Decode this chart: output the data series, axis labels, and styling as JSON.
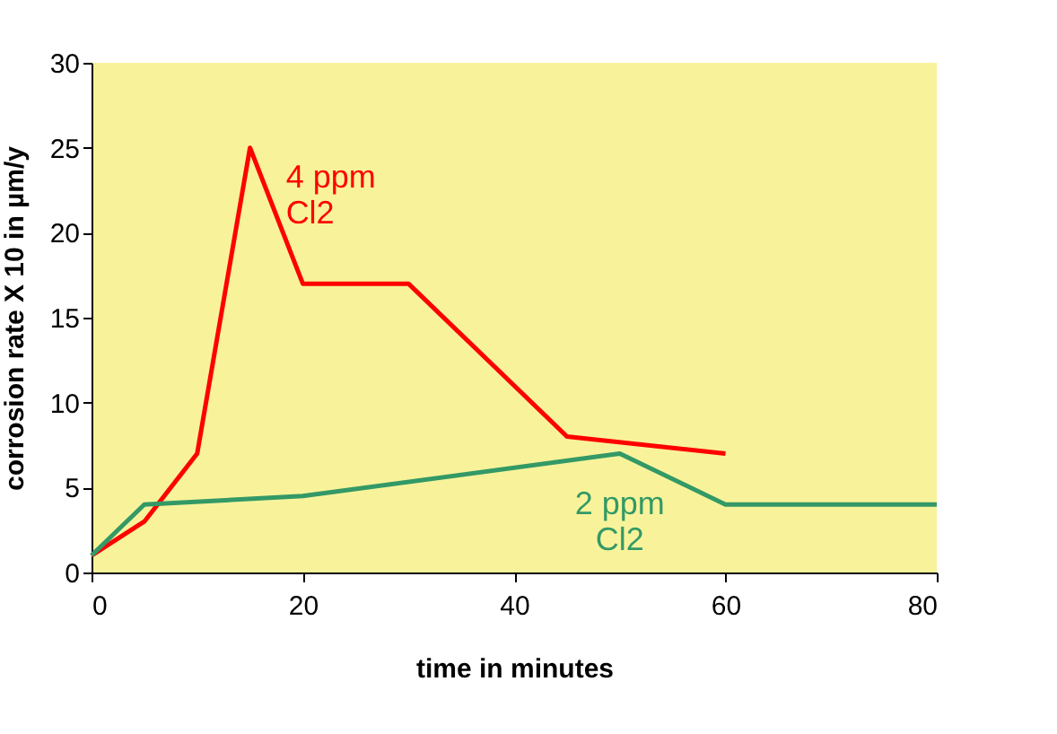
{
  "chart_data": {
    "type": "line",
    "xlabel": "time in minutes",
    "ylabel": "corrosion rate X 10 in µm/y",
    "xlim": [
      0,
      80
    ],
    "xticks": [
      0,
      20,
      40,
      60,
      80
    ],
    "ylim": [
      0,
      30
    ],
    "yticks": [
      0,
      5,
      10,
      15,
      20,
      25,
      30
    ],
    "grid": false,
    "legend": false,
    "marker": "none",
    "series": [
      {
        "name": "4 ppm Cl2",
        "color": "#ff0000",
        "x": [
          0,
          5,
          10,
          15,
          20,
          30,
          45,
          60
        ],
        "values": [
          1,
          3,
          7,
          25,
          17,
          17,
          8,
          7
        ]
      },
      {
        "name": "2 ppm Cl2",
        "color": "#339966",
        "x": [
          0,
          5,
          20,
          50,
          60,
          80
        ],
        "values": [
          1,
          4,
          4.5,
          7,
          4,
          4
        ]
      }
    ]
  }
}
